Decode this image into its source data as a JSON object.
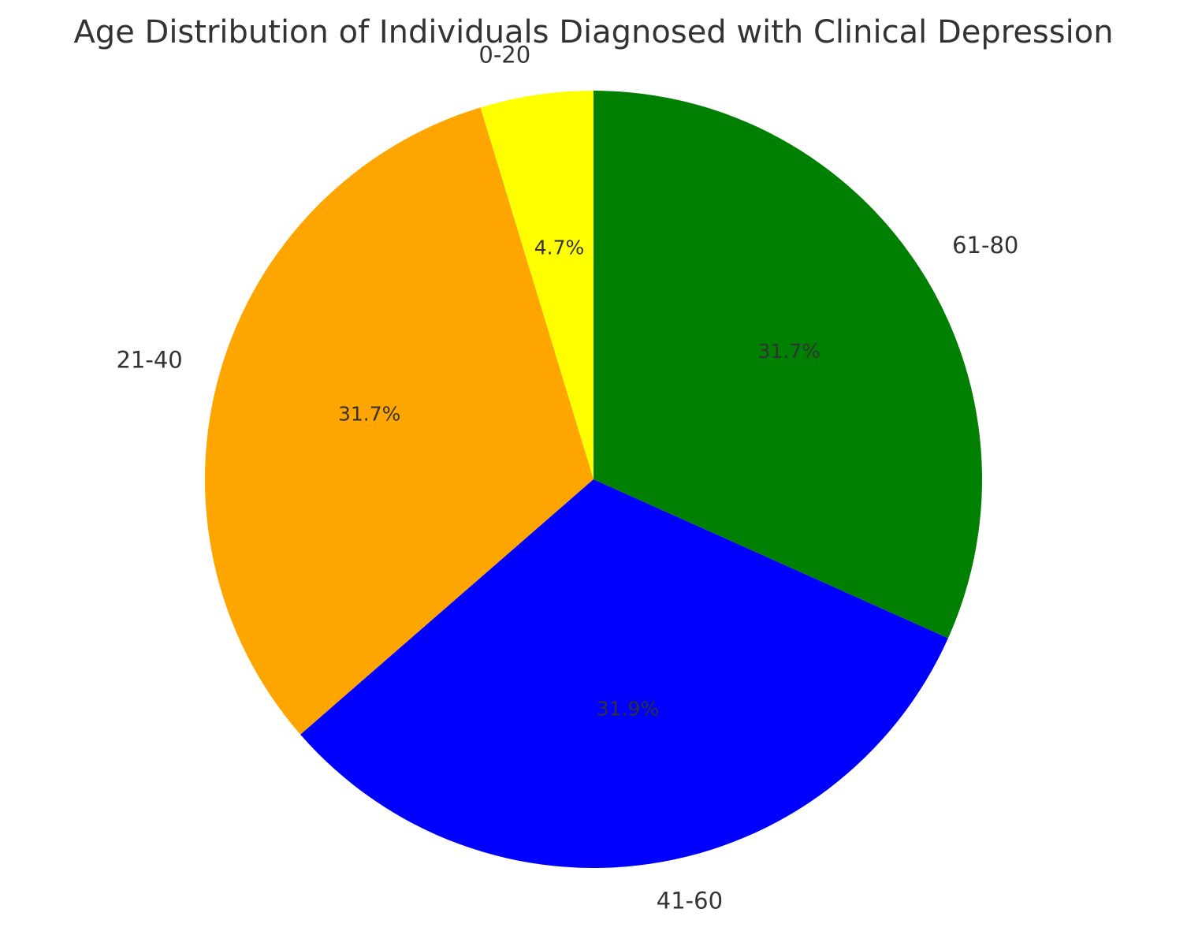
{
  "chart_data": {
    "type": "pie",
    "title": "Age Distribution of Individuals Diagnosed with Clinical Depression",
    "categories": [
      "0-20",
      "21-40",
      "41-60",
      "61-80"
    ],
    "values": [
      4.7,
      31.7,
      31.9,
      31.7
    ],
    "value_labels": [
      "4.7%",
      "31.7%",
      "31.9%",
      "31.7%"
    ],
    "colors": [
      "#ffff00",
      "#ffa500",
      "#0000ff",
      "#008000"
    ],
    "start_angle_deg": 90,
    "direction": "counterclockwise"
  }
}
